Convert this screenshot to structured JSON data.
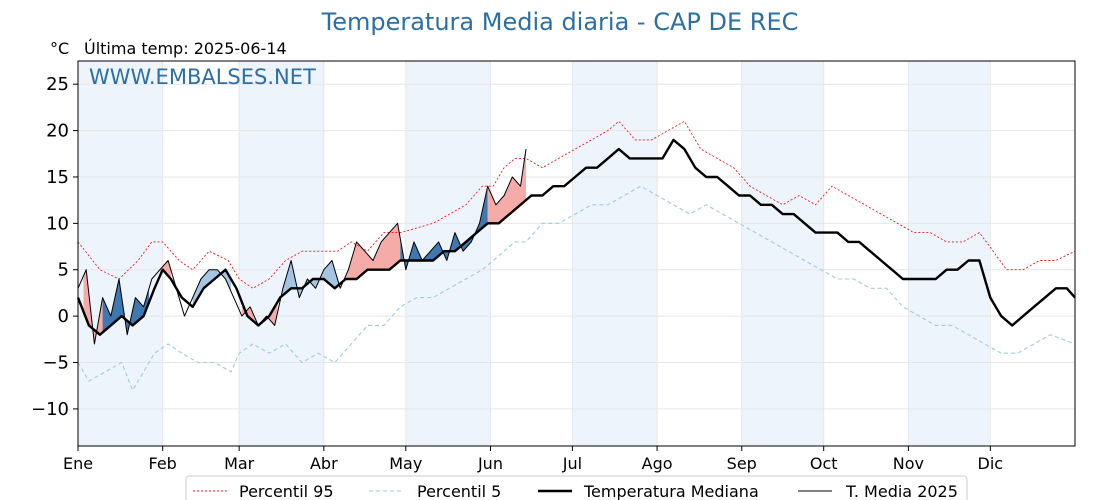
{
  "header": {
    "title": "Temperatura Media diaria - CAP DE REC",
    "unit": "°C",
    "last_temp": "Última temp: 2025-06-14",
    "watermark": "WWW.EMBALSES.NET"
  },
  "colors": {
    "title": "#2c6fa3",
    "watermark": "#2c6fa3",
    "p95": "#e41a1c",
    "p5": "#9ecae1",
    "median": "#000000",
    "current": "#000000",
    "above_fill": "#f4a3a0",
    "above_fill_strong": "#e8625f",
    "below_fill": "#9bbfe0",
    "below_fill_strong": "#2b6aa8",
    "month_band": "#eef4fb"
  },
  "chart_data": {
    "type": "line",
    "title": "Temperatura Media diaria - CAP DE REC",
    "ylabel": "°C",
    "ylim": [
      -14,
      27.5
    ],
    "xlim": [
      0,
      365
    ],
    "yticks": [
      25,
      20,
      15,
      10,
      5,
      0,
      -5,
      -10
    ],
    "ytick_labels": [
      "25",
      "20",
      "15",
      "10",
      "5",
      "0",
      "−5",
      "−10"
    ],
    "month_ticks": [
      {
        "label": "Ene",
        "day": 0
      },
      {
        "label": "Feb",
        "day": 31
      },
      {
        "label": "Mar",
        "day": 59
      },
      {
        "label": "Abr",
        "day": 90
      },
      {
        "label": "May",
        "day": 120
      },
      {
        "label": "Jun",
        "day": 151
      },
      {
        "label": "Jul",
        "day": 181
      },
      {
        "label": "Ago",
        "day": 212
      },
      {
        "label": "Sep",
        "day": 243
      },
      {
        "label": "Oct",
        "day": 273
      },
      {
        "label": "Nov",
        "day": 304
      },
      {
        "label": "Dic",
        "day": 334
      }
    ],
    "shaded_months": [
      [
        0,
        31
      ],
      [
        59,
        90
      ],
      [
        120,
        151
      ],
      [
        181,
        212
      ],
      [
        243,
        273
      ],
      [
        304,
        334
      ]
    ],
    "grid": true,
    "legend_position": "bottom",
    "legend": [
      "Percentil 95",
      "Percentil 5",
      "Temperatura Mediana",
      "T. Media 2025"
    ],
    "series": [
      {
        "name": "Percentil 95",
        "style": "dotted",
        "points": [
          [
            0,
            8
          ],
          [
            8,
            5
          ],
          [
            15,
            4
          ],
          [
            22,
            6
          ],
          [
            27,
            8
          ],
          [
            31,
            8
          ],
          [
            37,
            6
          ],
          [
            42,
            5
          ],
          [
            48,
            7
          ],
          [
            55,
            6
          ],
          [
            59,
            4
          ],
          [
            64,
            3
          ],
          [
            70,
            4
          ],
          [
            76,
            6
          ],
          [
            82,
            7
          ],
          [
            88,
            7
          ],
          [
            95,
            7
          ],
          [
            100,
            8
          ],
          [
            106,
            7
          ],
          [
            112,
            9
          ],
          [
            118,
            9
          ],
          [
            124,
            9.5
          ],
          [
            130,
            10
          ],
          [
            136,
            11
          ],
          [
            142,
            12
          ],
          [
            148,
            14
          ],
          [
            152,
            14
          ],
          [
            156,
            16
          ],
          [
            160,
            17
          ],
          [
            164,
            17
          ],
          [
            170,
            16
          ],
          [
            176,
            17
          ],
          [
            182,
            18
          ],
          [
            188,
            19
          ],
          [
            194,
            20
          ],
          [
            198,
            21
          ],
          [
            204,
            19
          ],
          [
            210,
            19
          ],
          [
            216,
            20
          ],
          [
            222,
            21
          ],
          [
            228,
            18
          ],
          [
            234,
            17
          ],
          [
            240,
            16
          ],
          [
            246,
            14
          ],
          [
            252,
            13
          ],
          [
            258,
            12
          ],
          [
            264,
            13
          ],
          [
            270,
            12
          ],
          [
            276,
            14
          ],
          [
            282,
            13
          ],
          [
            288,
            12
          ],
          [
            294,
            11
          ],
          [
            300,
            10
          ],
          [
            306,
            9
          ],
          [
            312,
            9
          ],
          [
            318,
            8
          ],
          [
            324,
            8
          ],
          [
            330,
            9
          ],
          [
            335,
            7
          ],
          [
            340,
            5
          ],
          [
            346,
            5
          ],
          [
            352,
            6
          ],
          [
            358,
            6
          ],
          [
            365,
            7
          ]
        ]
      },
      {
        "name": "Percentil 5",
        "style": "dashed",
        "points": [
          [
            0,
            -5
          ],
          [
            4,
            -7
          ],
          [
            10,
            -6
          ],
          [
            16,
            -5
          ],
          [
            20,
            -8
          ],
          [
            24,
            -6
          ],
          [
            28,
            -4
          ],
          [
            33,
            -3
          ],
          [
            38,
            -4
          ],
          [
            44,
            -5
          ],
          [
            50,
            -5
          ],
          [
            56,
            -6
          ],
          [
            59,
            -4
          ],
          [
            64,
            -3
          ],
          [
            70,
            -4
          ],
          [
            76,
            -3
          ],
          [
            82,
            -5
          ],
          [
            88,
            -4
          ],
          [
            94,
            -5
          ],
          [
            100,
            -3
          ],
          [
            106,
            -1
          ],
          [
            112,
            -1
          ],
          [
            118,
            1
          ],
          [
            124,
            2
          ],
          [
            130,
            2
          ],
          [
            136,
            3
          ],
          [
            142,
            4
          ],
          [
            148,
            5
          ],
          [
            152,
            6
          ],
          [
            156,
            7
          ],
          [
            160,
            8
          ],
          [
            164,
            8
          ],
          [
            170,
            10
          ],
          [
            176,
            10
          ],
          [
            182,
            11
          ],
          [
            188,
            12
          ],
          [
            194,
            12
          ],
          [
            200,
            13
          ],
          [
            206,
            14
          ],
          [
            212,
            13
          ],
          [
            218,
            12
          ],
          [
            224,
            11
          ],
          [
            230,
            12
          ],
          [
            236,
            11
          ],
          [
            242,
            10
          ],
          [
            248,
            9
          ],
          [
            254,
            8
          ],
          [
            260,
            7
          ],
          [
            266,
            6
          ],
          [
            272,
            5
          ],
          [
            278,
            4
          ],
          [
            284,
            4
          ],
          [
            290,
            3
          ],
          [
            296,
            3
          ],
          [
            302,
            1
          ],
          [
            308,
            0
          ],
          [
            314,
            -1
          ],
          [
            320,
            -1
          ],
          [
            326,
            -2
          ],
          [
            332,
            -3
          ],
          [
            338,
            -4
          ],
          [
            344,
            -4
          ],
          [
            350,
            -3
          ],
          [
            356,
            -2
          ],
          [
            365,
            -3
          ]
        ]
      },
      {
        "name": "Temperatura Mediana",
        "style": "thick",
        "points": [
          [
            0,
            2
          ],
          [
            4,
            -1
          ],
          [
            8,
            -2
          ],
          [
            12,
            -1
          ],
          [
            16,
            0
          ],
          [
            20,
            -1
          ],
          [
            24,
            0
          ],
          [
            28,
            3
          ],
          [
            31,
            5
          ],
          [
            34,
            4
          ],
          [
            38,
            2
          ],
          [
            42,
            1
          ],
          [
            46,
            3
          ],
          [
            50,
            4
          ],
          [
            54,
            5
          ],
          [
            58,
            3
          ],
          [
            62,
            0
          ],
          [
            66,
            -1
          ],
          [
            70,
            0
          ],
          [
            74,
            2
          ],
          [
            78,
            3
          ],
          [
            82,
            3
          ],
          [
            86,
            4
          ],
          [
            90,
            4
          ],
          [
            94,
            3
          ],
          [
            98,
            4
          ],
          [
            102,
            4
          ],
          [
            106,
            5
          ],
          [
            110,
            5
          ],
          [
            114,
            5
          ],
          [
            118,
            6
          ],
          [
            122,
            6
          ],
          [
            126,
            6
          ],
          [
            130,
            6
          ],
          [
            134,
            7
          ],
          [
            138,
            7
          ],
          [
            142,
            8
          ],
          [
            146,
            9
          ],
          [
            150,
            10
          ],
          [
            154,
            10
          ],
          [
            158,
            11
          ],
          [
            162,
            12
          ],
          [
            166,
            13
          ],
          [
            170,
            13
          ],
          [
            174,
            14
          ],
          [
            178,
            14
          ],
          [
            182,
            15
          ],
          [
            186,
            16
          ],
          [
            190,
            16
          ],
          [
            194,
            17
          ],
          [
            198,
            18
          ],
          [
            202,
            17
          ],
          [
            206,
            17
          ],
          [
            210,
            17
          ],
          [
            214,
            17
          ],
          [
            218,
            19
          ],
          [
            222,
            18
          ],
          [
            226,
            16
          ],
          [
            230,
            15
          ],
          [
            234,
            15
          ],
          [
            238,
            14
          ],
          [
            242,
            13
          ],
          [
            246,
            13
          ],
          [
            250,
            12
          ],
          [
            254,
            12
          ],
          [
            258,
            11
          ],
          [
            262,
            11
          ],
          [
            266,
            10
          ],
          [
            270,
            9
          ],
          [
            274,
            9
          ],
          [
            278,
            9
          ],
          [
            282,
            8
          ],
          [
            286,
            8
          ],
          [
            290,
            7
          ],
          [
            294,
            6
          ],
          [
            298,
            5
          ],
          [
            302,
            4
          ],
          [
            306,
            4
          ],
          [
            310,
            4
          ],
          [
            314,
            4
          ],
          [
            318,
            5
          ],
          [
            322,
            5
          ],
          [
            326,
            6
          ],
          [
            330,
            6
          ],
          [
            334,
            2
          ],
          [
            338,
            0
          ],
          [
            342,
            -1
          ],
          [
            346,
            0
          ],
          [
            350,
            1
          ],
          [
            354,
            2
          ],
          [
            358,
            3
          ],
          [
            362,
            3
          ],
          [
            365,
            2
          ]
        ]
      },
      {
        "name": "T. Media 2025",
        "style": "thin",
        "points": [
          [
            0,
            3
          ],
          [
            3,
            5
          ],
          [
            6,
            -3
          ],
          [
            9,
            2
          ],
          [
            12,
            0
          ],
          [
            15,
            4
          ],
          [
            18,
            -2
          ],
          [
            21,
            2
          ],
          [
            24,
            1
          ],
          [
            27,
            4
          ],
          [
            30,
            5
          ],
          [
            33,
            6
          ],
          [
            36,
            3
          ],
          [
            39,
            0
          ],
          [
            42,
            2
          ],
          [
            45,
            4
          ],
          [
            48,
            5
          ],
          [
            51,
            5
          ],
          [
            54,
            4
          ],
          [
            57,
            2
          ],
          [
            60,
            0
          ],
          [
            63,
            1
          ],
          [
            66,
            -1
          ],
          [
            69,
            0
          ],
          [
            72,
            -1
          ],
          [
            75,
            3
          ],
          [
            78,
            6
          ],
          [
            81,
            2
          ],
          [
            84,
            4
          ],
          [
            87,
            3
          ],
          [
            90,
            5
          ],
          [
            93,
            6
          ],
          [
            96,
            3
          ],
          [
            99,
            5
          ],
          [
            102,
            8
          ],
          [
            105,
            7
          ],
          [
            108,
            6
          ],
          [
            111,
            8
          ],
          [
            114,
            9
          ],
          [
            117,
            10
          ],
          [
            120,
            5
          ],
          [
            123,
            8
          ],
          [
            126,
            6
          ],
          [
            129,
            7
          ],
          [
            132,
            8
          ],
          [
            135,
            6
          ],
          [
            138,
            9
          ],
          [
            141,
            7
          ],
          [
            144,
            8
          ],
          [
            147,
            10
          ],
          [
            150,
            14
          ],
          [
            153,
            12
          ],
          [
            156,
            13
          ],
          [
            159,
            15
          ],
          [
            162,
            14
          ],
          [
            164,
            18
          ]
        ]
      }
    ],
    "fill_regions": [
      {
        "kind": "above",
        "x": [
          2,
          9
        ]
      },
      {
        "kind": "below",
        "x": [
          9,
          26
        ]
      },
      {
        "kind": "above",
        "x": [
          30,
          34
        ]
      },
      {
        "kind": "below",
        "x": [
          42,
          56
        ]
      },
      {
        "kind": "above",
        "x": [
          60,
          73
        ]
      },
      {
        "kind": "below",
        "x": [
          74,
          96
        ]
      },
      {
        "kind": "above",
        "x": [
          96,
          118
        ]
      },
      {
        "kind": "below",
        "x": [
          118,
          150
        ]
      },
      {
        "kind": "above",
        "x": [
          150,
          164
        ]
      }
    ]
  }
}
